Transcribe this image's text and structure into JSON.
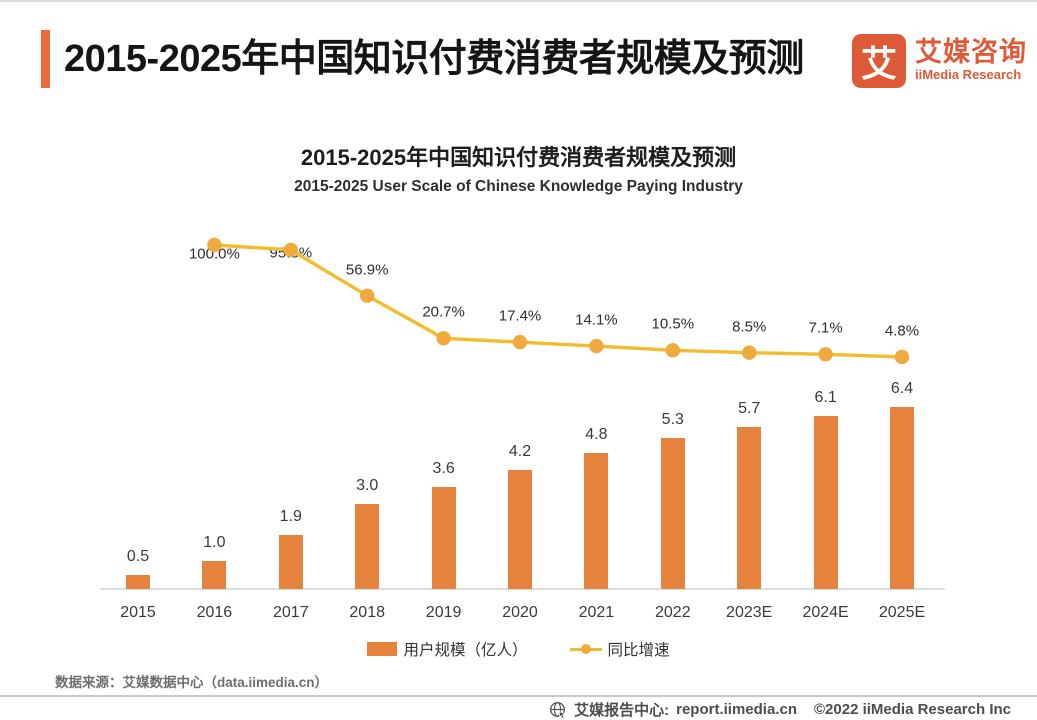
{
  "header": {
    "title": "2015-2025年中国知识付费消费者规模及预测",
    "logo": {
      "mark": "艾",
      "name_cn": "艾媒咨询",
      "name_en": "iiMedia Research"
    }
  },
  "chart": {
    "title": "2015-2025年中国知识付费消费者规模及预测",
    "subtitle": "2015-2025 User Scale of Chinese Knowledge Paying Industry",
    "legend": [
      {
        "label": "用户规模（亿人）",
        "marker": "bar-swatch"
      },
      {
        "label": "同比增速",
        "marker": "line-dot-swatch"
      }
    ]
  },
  "chart_data": {
    "type": "bar+line",
    "title": "2015-2025年中国知识付费消费者规模及预测",
    "subtitle": "2015-2025 User Scale of Chinese Knowledge Paying Industry",
    "categories": [
      "2015",
      "2016",
      "2017",
      "2018",
      "2019",
      "2020",
      "2021",
      "2022",
      "2023E",
      "2024E",
      "2025E"
    ],
    "series": [
      {
        "name": "用户规模（亿人）",
        "type": "bar",
        "values": [
          0.5,
          1.0,
          1.9,
          3.0,
          3.6,
          4.2,
          4.8,
          5.3,
          5.7,
          6.1,
          6.4
        ],
        "labels": [
          "0.5",
          "1.0",
          "1.9",
          "3.0",
          "3.6",
          "4.2",
          "4.8",
          "5.3",
          "5.7",
          "6.1",
          "6.4"
        ],
        "color": "#E5823C"
      },
      {
        "name": "同比增速",
        "type": "line",
        "values": [
          null,
          100.0,
          95.8,
          56.9,
          20.7,
          17.4,
          14.1,
          10.5,
          8.5,
          7.1,
          4.8
        ],
        "labels": [
          "",
          "100.0%",
          "95.8%",
          "56.9%",
          "20.7%",
          "17.4%",
          "14.1%",
          "10.5%",
          "8.5%",
          "7.1%",
          "4.8%"
        ],
        "color": "#F2BC2E",
        "dot_color": "#F0A93C"
      }
    ],
    "bar_axis_range": [
      0,
      6.4
    ],
    "line_axis_range_pct": [
      0,
      100
    ],
    "grid": false,
    "legend_position": "bottom"
  },
  "colors": {
    "bar": "#E5823C",
    "line": "#F2BC2E",
    "line_dot": "#F0A93C",
    "accent_bar": "#EC6A3A",
    "logo": "#DC5A38"
  },
  "source_note": "数据来源：艾媒数据中心（data.iimedia.cn）",
  "footer": {
    "site_label": "艾媒报告中心:",
    "site_url": "report.iimedia.cn",
    "copyright": "©2022  iiMedia Research Inc"
  }
}
